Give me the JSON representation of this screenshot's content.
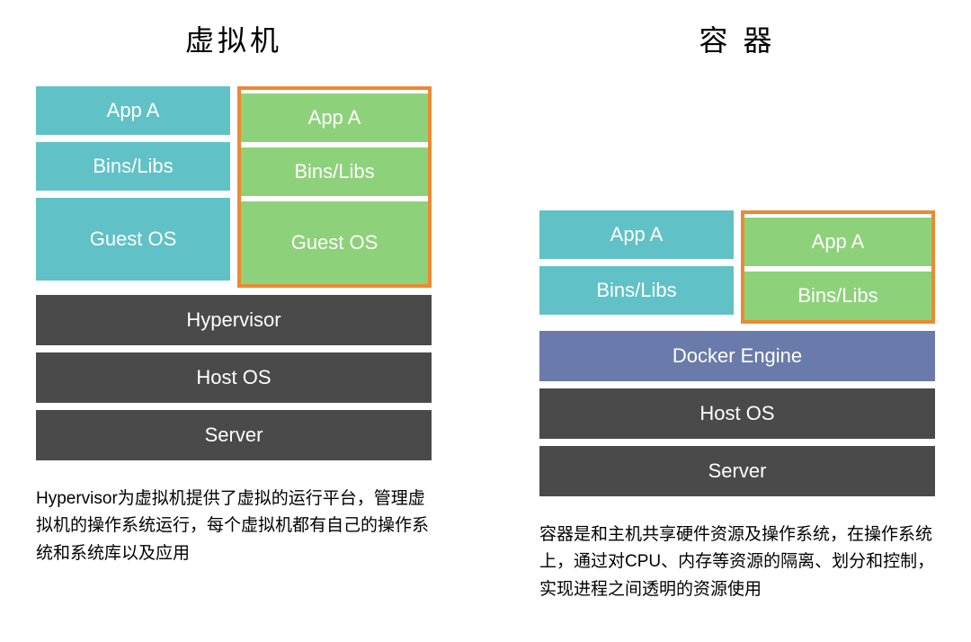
{
  "colors": {
    "teal": "#60c2c7",
    "green": "#8dd27a",
    "orange": "#ec8a33",
    "darkgray": "#4a4a4a",
    "slateblue": "#6a7aaa",
    "white": "#ffffff"
  },
  "left": {
    "title": "虚拟机",
    "vm1": {
      "app": "App A",
      "libs": "Bins/Libs",
      "os": "Guest OS"
    },
    "vm2": {
      "app": "App A",
      "libs": "Bins/Libs",
      "os": "Guest OS"
    },
    "base": {
      "hypervisor": "Hypervisor",
      "hostos": "Host OS",
      "server": "Server"
    },
    "description": "Hypervisor为虚拟机提供了虚拟的运行平台，管理虚拟机的操作系统运行，每个虚拟机都有自己的操作系统和系统库以及应用"
  },
  "right": {
    "title": "容 器",
    "c1": {
      "app": "App A",
      "libs": "Bins/Libs"
    },
    "c2": {
      "app": "App A",
      "libs": "Bins/Libs"
    },
    "base": {
      "engine": "Docker Engine",
      "hostos": "Host OS",
      "server": "Server"
    },
    "description": "容器是和主机共享硬件资源及操作系统，在操作系统上，通过对CPU、内存等资源的隔离、划分和控制，实现进程之间透明的资源使用"
  }
}
